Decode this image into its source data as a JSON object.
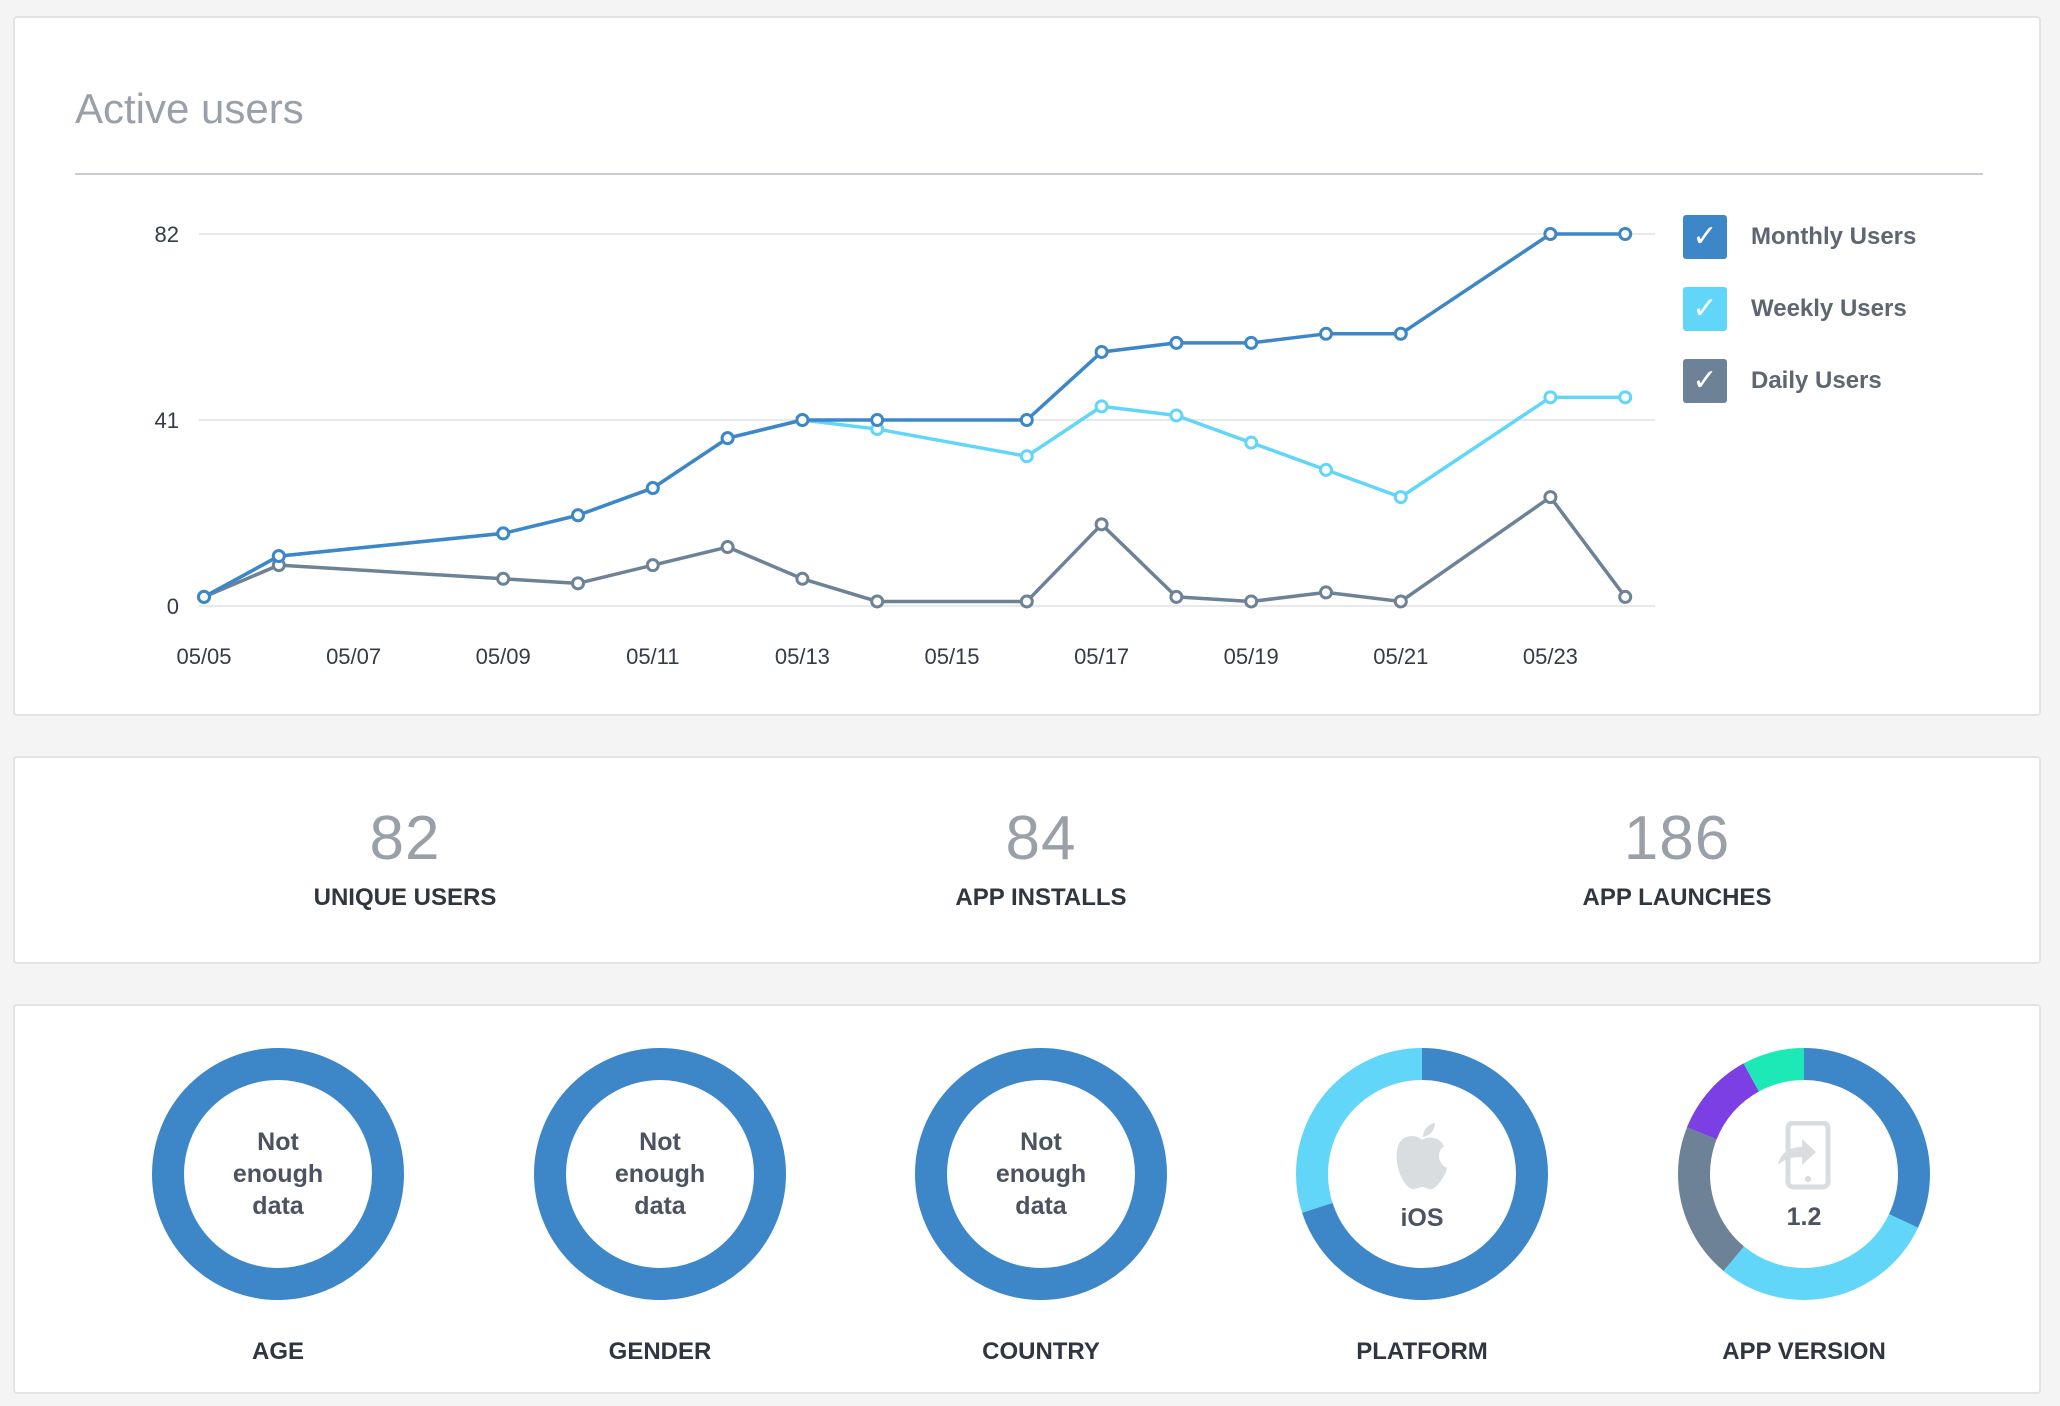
{
  "header": {
    "title": "Active users"
  },
  "chart_data": {
    "type": "line",
    "title": "Active users",
    "x_tick_labels": [
      "05/05",
      "05/07",
      "05/09",
      "05/11",
      "05/13",
      "05/15",
      "05/17",
      "05/19",
      "05/21",
      "05/23"
    ],
    "y_ticks": [
      0,
      41,
      82
    ],
    "ylim": [
      0,
      82
    ],
    "grid": true,
    "legend_position": "right",
    "series": [
      {
        "name": "Monthly Users",
        "color": "#3d86c8",
        "points": [
          [
            "05/05",
            2
          ],
          [
            "05/06",
            11
          ],
          [
            "05/09",
            16
          ],
          [
            "05/10",
            20
          ],
          [
            "05/11",
            26
          ],
          [
            "05/12",
            37
          ],
          [
            "05/13",
            41
          ],
          [
            "05/14",
            41
          ],
          [
            "05/16",
            41
          ],
          [
            "05/17",
            56
          ],
          [
            "05/18",
            58
          ],
          [
            "05/19",
            58
          ],
          [
            "05/20",
            60
          ],
          [
            "05/21",
            60
          ],
          [
            "05/23",
            82
          ],
          [
            "05/24",
            82
          ]
        ]
      },
      {
        "name": "Weekly Users",
        "color": "#62d6f8",
        "points": [
          [
            "05/05",
            2
          ],
          [
            "05/06",
            11
          ],
          [
            "05/09",
            16
          ],
          [
            "05/10",
            20
          ],
          [
            "05/11",
            26
          ],
          [
            "05/12",
            37
          ],
          [
            "05/13",
            41
          ],
          [
            "05/14",
            39
          ],
          [
            "05/16",
            33
          ],
          [
            "05/17",
            44
          ],
          [
            "05/18",
            42
          ],
          [
            "05/19",
            36
          ],
          [
            "05/20",
            30
          ],
          [
            "05/21",
            24
          ],
          [
            "05/23",
            46
          ],
          [
            "05/24",
            46
          ]
        ]
      },
      {
        "name": "Daily Users",
        "color": "#6d8296",
        "points": [
          [
            "05/05",
            2
          ],
          [
            "05/06",
            9
          ],
          [
            "05/09",
            6
          ],
          [
            "05/10",
            5
          ],
          [
            "05/11",
            9
          ],
          [
            "05/12",
            13
          ],
          [
            "05/13",
            6
          ],
          [
            "05/14",
            1
          ],
          [
            "05/16",
            1
          ],
          [
            "05/17",
            18
          ],
          [
            "05/18",
            2
          ],
          [
            "05/19",
            1
          ],
          [
            "05/20",
            3
          ],
          [
            "05/21",
            1
          ],
          [
            "05/23",
            24
          ],
          [
            "05/24",
            2
          ]
        ]
      }
    ]
  },
  "legend": [
    {
      "label": "Monthly Users",
      "color": "#3d86c8",
      "check": "✓"
    },
    {
      "label": "Weekly Users",
      "color": "#62d6f8",
      "check": "✓"
    },
    {
      "label": "Daily Users",
      "color": "#6d8296",
      "check": "✓"
    }
  ],
  "stats": [
    {
      "value": "82",
      "label": "UNIQUE USERS"
    },
    {
      "value": "84",
      "label": "APP INSTALLS"
    },
    {
      "value": "186",
      "label": "APP LAUNCHES"
    }
  ],
  "demographics": [
    {
      "label": "AGE",
      "center": "Not enough data",
      "icon": "",
      "segments": [
        {
          "value": 100,
          "color": "#3d86c8"
        }
      ]
    },
    {
      "label": "GENDER",
      "center": "Not enough data",
      "icon": "",
      "segments": [
        {
          "value": 100,
          "color": "#3d86c8"
        }
      ]
    },
    {
      "label": "COUNTRY",
      "center": "Not enough data",
      "icon": "",
      "segments": [
        {
          "value": 100,
          "color": "#3d86c8"
        }
      ]
    },
    {
      "label": "PLATFORM",
      "center": "iOS",
      "icon": "apple-icon",
      "segments": [
        {
          "value": 70,
          "color": "#3d86c8"
        },
        {
          "value": 30,
          "color": "#62d6f8"
        }
      ]
    },
    {
      "label": "APP VERSION",
      "center": "1.2",
      "icon": "tablet-share-icon",
      "segments": [
        {
          "value": 32,
          "color": "#3d86c8"
        },
        {
          "value": 29,
          "color": "#62d6f8"
        },
        {
          "value": 20,
          "color": "#6d8296"
        },
        {
          "value": 11,
          "color": "#7b3fe4"
        },
        {
          "value": 8,
          "color": "#1de9b6"
        }
      ]
    }
  ]
}
